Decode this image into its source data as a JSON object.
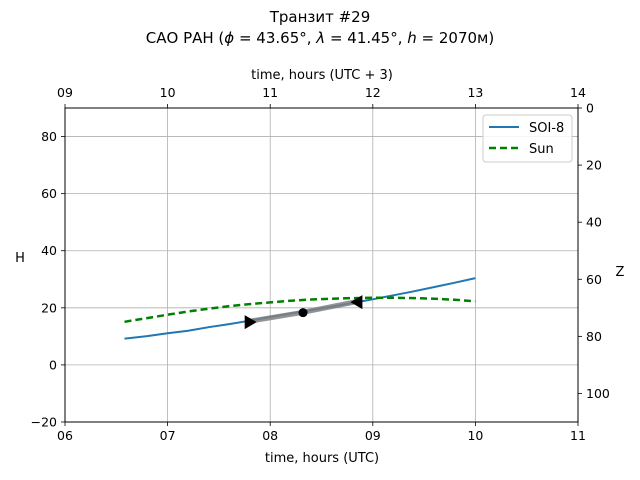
{
  "chart_data": {
    "type": "line",
    "title_line1": "Транзит #29",
    "title_line2": "САО РАН (ϕ=43.65°, λ=41.45°, h=2070м)",
    "title_prefix": "САО РАН (",
    "title_phi": "ϕ",
    "title_phi_val": " = 43.65°, ",
    "title_lambda": "λ",
    "title_lambda_val": " = 41.45°, ",
    "title_h": "h",
    "title_h_val": " = 2070м)",
    "xlabel": "time, hours (UTC)",
    "xlabel_top": "time, hours (UTC + 3)",
    "ylabel": "H",
    "ylabel_right": "Z",
    "xlim": [
      6,
      11
    ],
    "ylim": [
      -20,
      90
    ],
    "zlim": [
      0,
      110
    ],
    "xticks": [
      6,
      7,
      8,
      9,
      10,
      11
    ],
    "xtick_labels": [
      "06",
      "07",
      "08",
      "09",
      "10",
      "11"
    ],
    "xticks_top_labels": [
      "09",
      "10",
      "11",
      "12",
      "13",
      "14"
    ],
    "yticks": [
      -20,
      0,
      20,
      40,
      60,
      80
    ],
    "ytick_labels": [
      "−20",
      "0",
      "20",
      "40",
      "60",
      "80"
    ],
    "zticks": [
      0,
      20,
      40,
      60,
      80,
      100
    ],
    "ztick_labels": [
      "0",
      "20",
      "40",
      "60",
      "80",
      "100"
    ],
    "grid": true,
    "legend_position": "top-right",
    "series": [
      {
        "name": "SOI-8",
        "color": "#1f77b4",
        "style": "solid",
        "x": [
          6.58,
          6.8,
          7.0,
          7.2,
          7.4,
          7.6,
          7.8,
          8.0,
          8.2,
          8.4,
          8.6,
          8.8,
          9.0,
          9.2,
          9.4,
          9.6,
          9.8,
          10.0
        ],
        "y": [
          9.2,
          10.1,
          11.1,
          12.0,
          13.2,
          14.3,
          15.5,
          16.8,
          18.0,
          19.2,
          20.4,
          21.7,
          23.0,
          24.4,
          25.8,
          27.3,
          28.8,
          30.4
        ]
      },
      {
        "name": "Sun",
        "color": "#008000",
        "style": "dashed",
        "x": [
          6.58,
          6.8,
          7.0,
          7.2,
          7.4,
          7.6,
          7.8,
          8.0,
          8.2,
          8.4,
          8.6,
          8.8,
          9.0,
          9.2,
          9.4,
          9.6,
          9.8,
          10.0
        ],
        "y": [
          15.1,
          16.4,
          17.6,
          18.7,
          19.7,
          20.6,
          21.3,
          21.9,
          22.5,
          22.9,
          23.2,
          23.4,
          23.5,
          23.5,
          23.4,
          23.2,
          22.8,
          22.3
        ]
      }
    ],
    "transit_segment": {
      "color": "#808080",
      "x": [
        7.8,
        8.3,
        8.85
      ],
      "y": [
        15.3,
        18.3,
        22.2
      ]
    },
    "markers": [
      {
        "name": "transit-start",
        "shape": "triangle-right",
        "x": 7.8,
        "y": 15.0
      },
      {
        "name": "transit-center",
        "shape": "circle",
        "x": 8.32,
        "y": 18.3
      },
      {
        "name": "transit-end",
        "shape": "triangle-left",
        "x": 8.85,
        "y": 22.0
      }
    ]
  }
}
